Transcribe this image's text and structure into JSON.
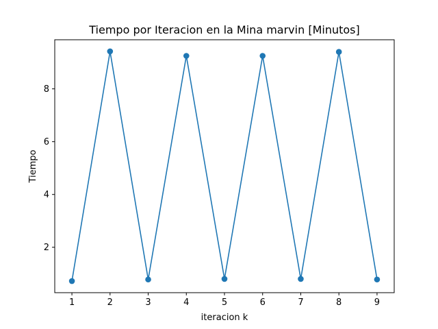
{
  "chart_data": {
    "type": "line",
    "title": "Tiempo por Iteracion en la Mina marvin [Minutos]",
    "xlabel": "iteracion k",
    "ylabel": "Tiempo",
    "x": [
      1,
      2,
      3,
      4,
      5,
      6,
      7,
      8,
      9
    ],
    "series": [
      {
        "values": [
          0.72,
          9.42,
          0.78,
          9.25,
          0.8,
          9.25,
          0.8,
          9.4,
          0.78
        ],
        "color": "#1f77b4",
        "marker": "circle"
      }
    ],
    "xlim": [
      0.55,
      9.45
    ],
    "ylim": [
      0.28,
      9.86
    ],
    "xticks": [
      "1",
      "2",
      "3",
      "4",
      "5",
      "6",
      "7",
      "8",
      "9"
    ],
    "yticks": [
      "2",
      "4",
      "6",
      "8"
    ],
    "grid": false,
    "legend": "none"
  }
}
